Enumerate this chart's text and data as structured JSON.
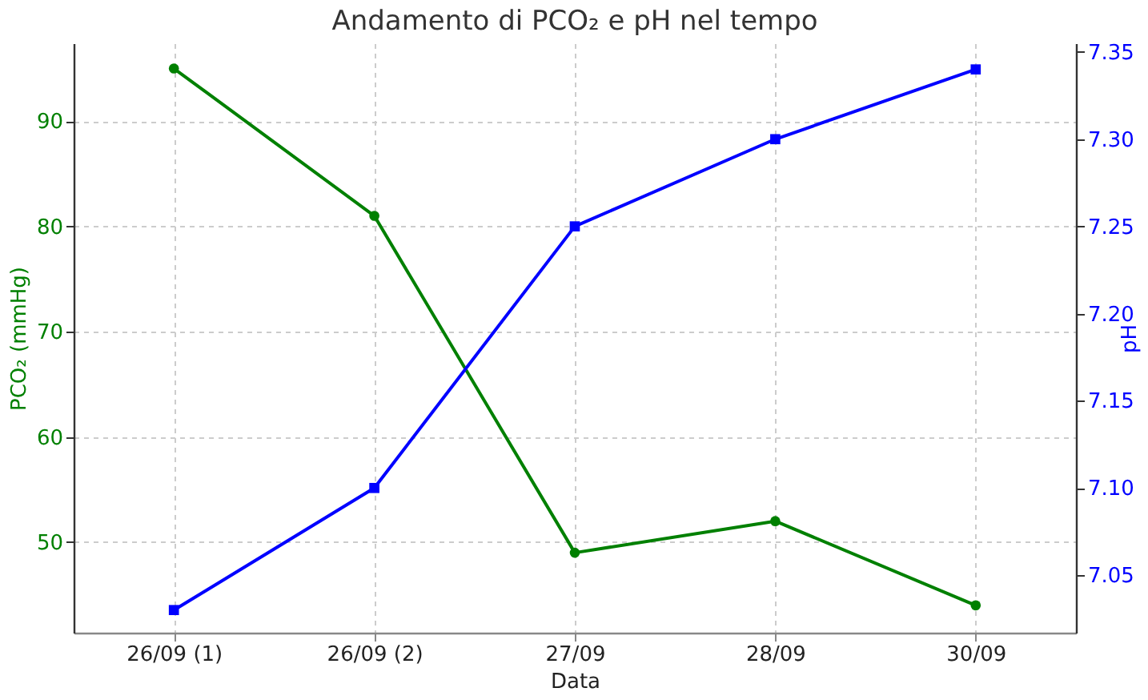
{
  "chart_data": {
    "type": "line",
    "title": "Andamento di PCO₂ e pH nel tempo",
    "xlabel": "Data",
    "ylabel": "PCO₂ (mmHg)",
    "y2label": "pH",
    "categories": [
      "26/09 (1)",
      "26/09 (2)",
      "27/09",
      "28/09",
      "30/09"
    ],
    "series": [
      {
        "color": "#008000",
        "values": [
          95,
          81,
          49,
          52,
          44
        ],
        "marker": "circle"
      },
      {
        "color": "#0000ff",
        "values": [
          7.03,
          7.1,
          7.25,
          7.3,
          7.34
        ],
        "marker": "square",
        "axis": "y2"
      }
    ],
    "ylim": [
      41.4,
      97.4
    ],
    "yticks": [
      50,
      60,
      70,
      80,
      90
    ],
    "y2lim": [
      7.017,
      7.355
    ],
    "y2ticks": [
      {
        "value": 7.05,
        "label": "7.05"
      },
      {
        "value": 7.1,
        "label": "7.10"
      },
      {
        "value": 7.15,
        "label": "7.15"
      },
      {
        "value": 7.2,
        "label": "7.20"
      },
      {
        "value": 7.25,
        "label": "7.25"
      },
      {
        "value": 7.3,
        "label": "7.30"
      },
      {
        "value": 7.35,
        "label": "7.35"
      }
    ],
    "grid": true,
    "line_style": "solid"
  }
}
